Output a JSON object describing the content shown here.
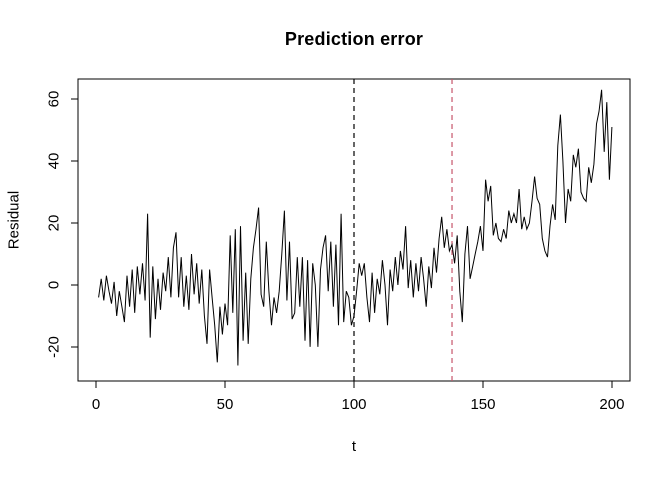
{
  "chart_data": {
    "type": "line",
    "title": "Prediction error",
    "xlabel": "t",
    "ylabel": "Residual",
    "x_ticks": [
      0,
      50,
      100,
      150,
      200
    ],
    "y_ticks": [
      -20,
      0,
      20,
      40,
      60
    ],
    "xlim": [
      -7,
      207
    ],
    "ylim": [
      -31,
      66.5
    ],
    "grid": false,
    "legend": "none",
    "series_color": "#000000",
    "background": "#ffffff",
    "vlines": [
      {
        "x": 100,
        "color": "#000000",
        "style": "dashed"
      },
      {
        "x": 138,
        "color": "#C6566B",
        "style": "dashed"
      }
    ],
    "x_start": 1,
    "x_step": 1,
    "values": [
      -4,
      2,
      -5,
      3,
      -2,
      -6,
      1,
      -10,
      -2,
      -7,
      -12,
      3,
      -7,
      5,
      -9,
      6,
      -3,
      7,
      -5,
      23,
      -17,
      6,
      -11,
      2,
      -8,
      4,
      -2,
      9,
      -4,
      12,
      17,
      -4,
      9,
      -7,
      3,
      -8,
      10,
      -3,
      7,
      -6,
      5,
      -10,
      -19,
      5,
      -4,
      -13,
      -25,
      -7,
      -16,
      -6,
      -13,
      16,
      -9,
      18,
      -26,
      19,
      -18,
      4,
      -19,
      2,
      12,
      18,
      25,
      -3,
      -7,
      14,
      -2,
      -13,
      -4,
      -9,
      -2,
      10,
      24,
      -5,
      14,
      -11,
      -9,
      9,
      -7,
      9,
      -18,
      8,
      -20,
      7,
      0,
      -20,
      5,
      12,
      16,
      -2,
      14,
      -7,
      13,
      -13,
      23,
      -12,
      -2,
      -4,
      -13,
      -10,
      -2,
      7,
      3,
      7,
      -4,
      -12,
      4,
      -9,
      2,
      -3,
      8,
      0,
      -13,
      5,
      -2,
      9,
      0,
      11,
      5,
      19,
      -1,
      8,
      -4,
      7,
      -2,
      9,
      2,
      -7,
      6,
      -1,
      12,
      4,
      15,
      22,
      12,
      18,
      11,
      13,
      7,
      16,
      -2,
      -12,
      10,
      19,
      2,
      6,
      10,
      14,
      19,
      11,
      34,
      27,
      32,
      16,
      20,
      15,
      14,
      18,
      15,
      24,
      20,
      23,
      20,
      31,
      18,
      22,
      18,
      20,
      27,
      35,
      28,
      26,
      15,
      11,
      9,
      19,
      26,
      21,
      45,
      55,
      40,
      20,
      31,
      27,
      42,
      38,
      44,
      30,
      28,
      27,
      38,
      33,
      39,
      52,
      56,
      63,
      43,
      59,
      34,
      51
    ]
  }
}
